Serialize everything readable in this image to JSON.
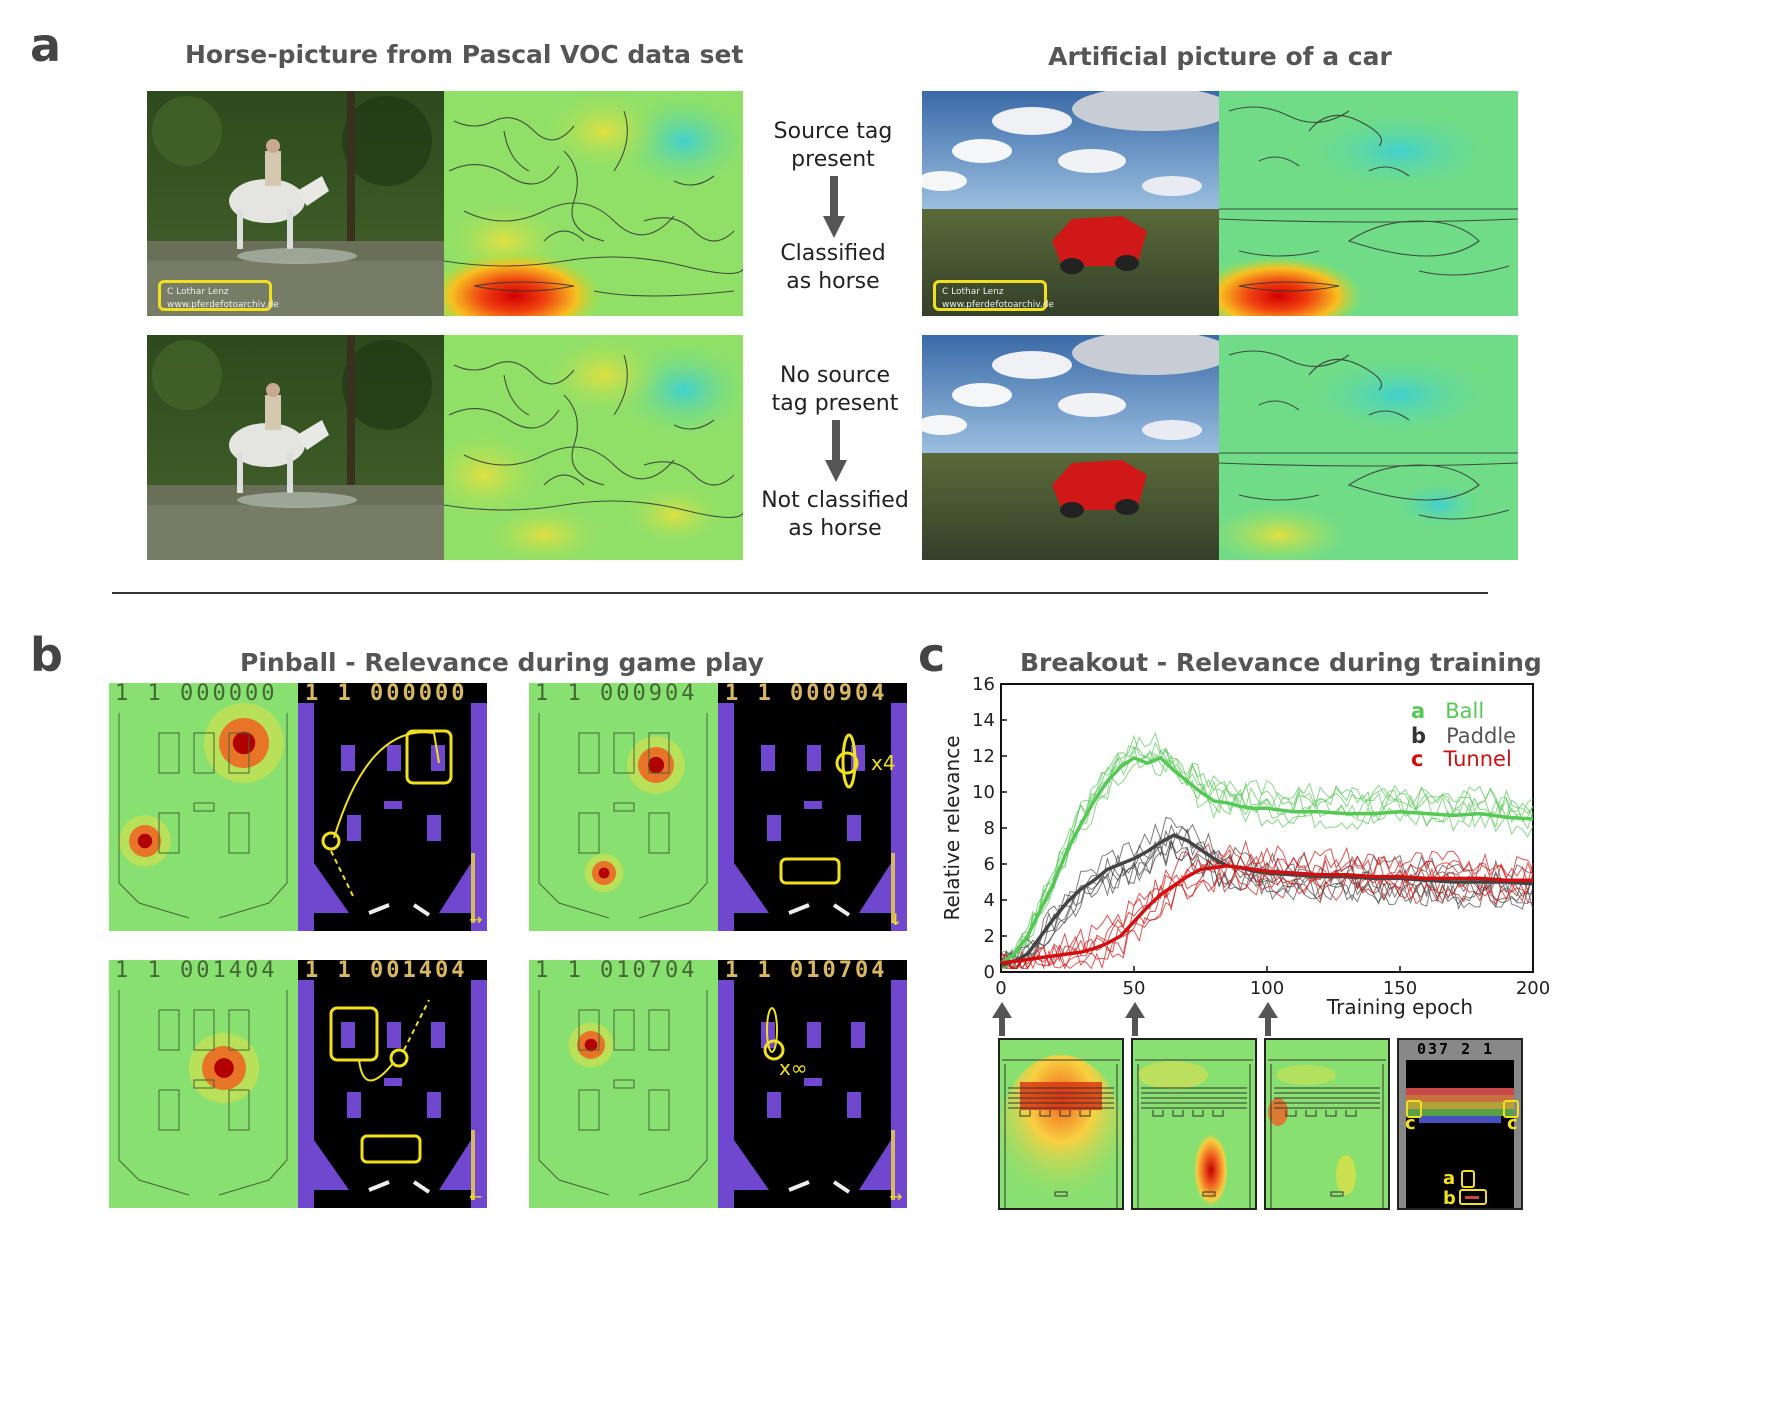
{
  "panel_a": {
    "letter": "a",
    "left_title": "Horse-picture from Pascal VOC data set",
    "right_title": "Artificial picture of a car",
    "flow_top_1": "Source tag",
    "flow_top_2": "present",
    "flow_top_3": "Classified",
    "flow_top_4": "as horse",
    "flow_bot_1": "No source",
    "flow_bot_2": "tag present",
    "flow_bot_3": "Not classified",
    "flow_bot_4": "as horse",
    "tag_line1": "C  Lothar Lenz",
    "tag_line2": "www.pferdefotoarchiv.de"
  },
  "panel_b": {
    "letter": "b",
    "title": "Pinball - Relevance during game play",
    "scores": [
      "1  1  000000",
      "1  1  000904",
      "1  1  001404",
      "1  1  010704"
    ],
    "label_x4": "x4",
    "label_xinf": "x∞"
  },
  "panel_c": {
    "letter": "c",
    "title": "Breakout - Relevance during training",
    "legend": [
      {
        "key": "a",
        "name": "Ball",
        "color": "#55c855"
      },
      {
        "key": "b",
        "name": "Paddle",
        "color": "#444444"
      },
      {
        "key": "c",
        "name": "Tunnel",
        "color": "#d01010"
      }
    ],
    "score_text": "037  2  1",
    "label_a": "a",
    "label_b": "b",
    "label_c": "c"
  },
  "chart_data": {
    "type": "line",
    "title": "Breakout - Relevance during training",
    "xlabel": "Training epoch",
    "ylabel": "Relative relevance",
    "xlim": [
      0,
      200
    ],
    "ylim": [
      0,
      16
    ],
    "xticks": [
      0,
      50,
      100,
      150,
      200
    ],
    "yticks": [
      0,
      2,
      4,
      6,
      8,
      10,
      12,
      14,
      16
    ],
    "legend_position": "top-right",
    "x": [
      0,
      5,
      10,
      15,
      20,
      25,
      30,
      35,
      40,
      45,
      50,
      55,
      60,
      65,
      70,
      75,
      80,
      85,
      90,
      95,
      100,
      110,
      120,
      130,
      140,
      150,
      160,
      170,
      180,
      190,
      200
    ],
    "series": [
      {
        "name": "Ball",
        "color": "#55c855",
        "values": [
          0.5,
          1.0,
          2.0,
          3.5,
          5.0,
          6.8,
          8.2,
          9.5,
          10.6,
          11.4,
          11.9,
          11.6,
          11.9,
          11.2,
          10.6,
          10.0,
          9.5,
          9.4,
          9.2,
          9.1,
          9.1,
          8.9,
          8.9,
          8.8,
          8.8,
          8.9,
          8.8,
          8.7,
          8.8,
          8.6,
          8.5
        ]
      },
      {
        "name": "Paddle",
        "color": "#444444",
        "values": [
          0.4,
          0.6,
          1.0,
          2.0,
          3.0,
          3.9,
          4.6,
          5.1,
          5.7,
          6.0,
          6.3,
          6.7,
          7.2,
          7.6,
          7.3,
          6.8,
          6.3,
          5.9,
          5.8,
          5.6,
          5.5,
          5.4,
          5.3,
          5.3,
          5.2,
          5.2,
          5.1,
          5.0,
          5.0,
          5.0,
          4.9
        ]
      },
      {
        "name": "Tunnel",
        "color": "#d01010",
        "values": [
          0.5,
          0.6,
          0.7,
          0.8,
          0.9,
          1.0,
          1.1,
          1.3,
          1.6,
          2.0,
          2.8,
          3.6,
          4.3,
          4.8,
          5.3,
          5.7,
          5.8,
          5.9,
          5.8,
          5.7,
          5.6,
          5.5,
          5.4,
          5.4,
          5.3,
          5.3,
          5.2,
          5.2,
          5.2,
          5.1,
          5.1
        ]
      }
    ]
  }
}
